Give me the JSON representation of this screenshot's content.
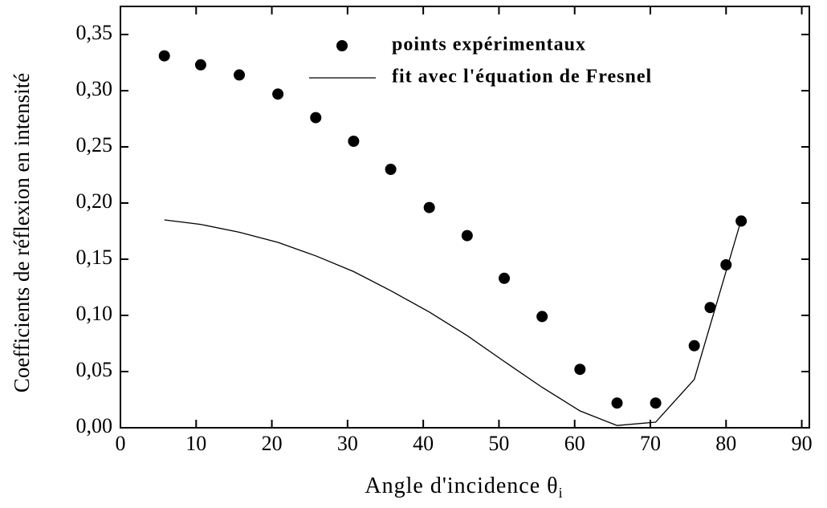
{
  "chart_data": {
    "type": "scatter",
    "xlabel": {
      "text": "Angle d'incidence θ",
      "subscript": "i"
    },
    "ylabel": "Coefficients de réflexion en intensité",
    "xlim": [
      0,
      91
    ],
    "ylim": [
      0,
      0.375
    ],
    "xticks": [
      0,
      10,
      20,
      30,
      40,
      50,
      60,
      70,
      80,
      90
    ],
    "yticks": [
      {
        "value": 0,
        "label": "0,00"
      },
      {
        "value": 0.05,
        "label": "0,05"
      },
      {
        "value": 0.1,
        "label": "0,10"
      },
      {
        "value": 0.15,
        "label": "0,15"
      },
      {
        "value": 0.2,
        "label": "0,20"
      },
      {
        "value": 0.25,
        "label": "0,25"
      },
      {
        "value": 0.3,
        "label": "0,30"
      },
      {
        "value": 0.35,
        "label": "0,35"
      }
    ],
    "series": [
      {
        "name": "points expérimentaux",
        "kind": "scatter",
        "color": "#000000",
        "x": [
          5.8,
          10.6,
          15.7,
          20.8,
          25.8,
          30.8,
          35.7,
          40.8,
          45.8,
          50.7,
          55.7,
          60.7,
          65.6,
          70.7,
          75.8,
          77.9,
          80,
          82
        ],
        "values": [
          0.331,
          0.323,
          0.314,
          0.297,
          0.276,
          0.255,
          0.23,
          0.196,
          0.171,
          0.133,
          0.099,
          0.052,
          0.022,
          0.022,
          0.073,
          0.107,
          0.145,
          0.184
        ]
      },
      {
        "name": "fit avec l'équation de Fresnel",
        "kind": "line",
        "color": "#000000",
        "x": [
          5.8,
          10.6,
          15.7,
          20.8,
          25.8,
          30.8,
          35.7,
          40.8,
          45.8,
          50.7,
          55.7,
          60.7,
          65.6,
          70.7,
          75.8,
          82
        ],
        "values": [
          0.185,
          0.181,
          0.174,
          0.165,
          0.153,
          0.139,
          0.122,
          0.103,
          0.082,
          0.059,
          0.036,
          0.015,
          0.002,
          0.005,
          0.043,
          0.185
        ]
      }
    ]
  }
}
